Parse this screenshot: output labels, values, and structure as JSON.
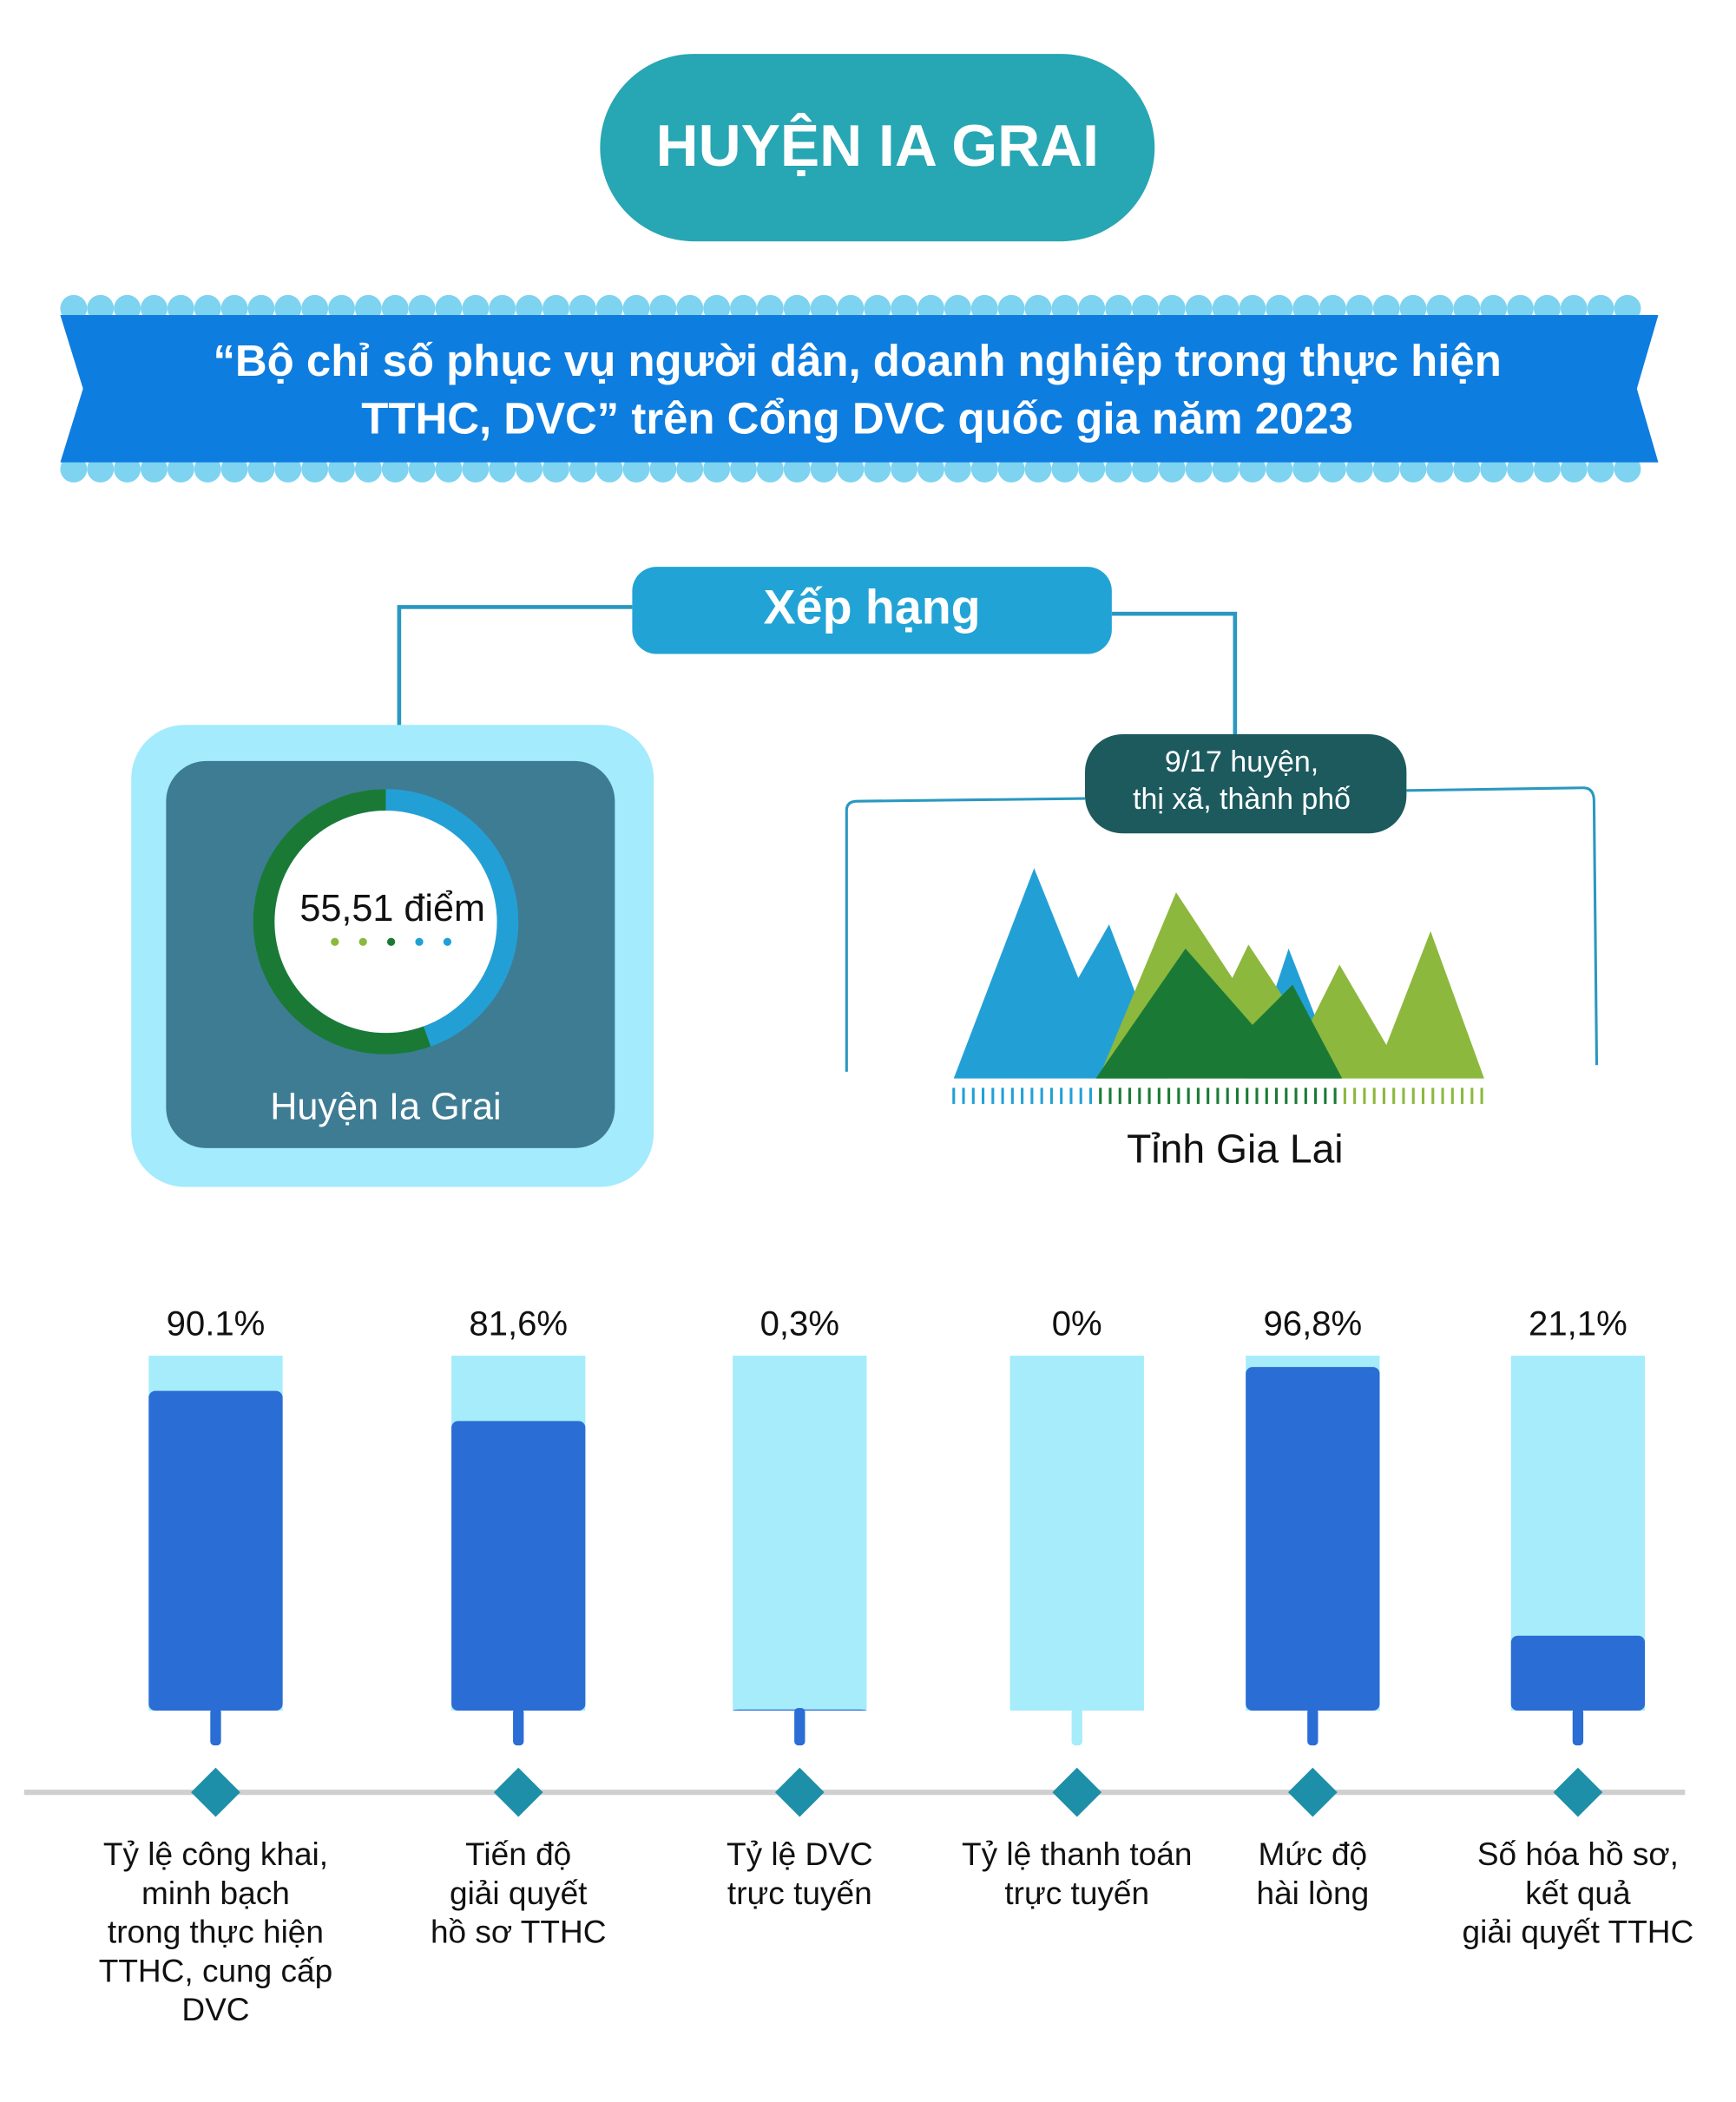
{
  "header": {
    "title": "HUYỆN IA GRAI",
    "banner": "“Bộ chỉ số phục vụ người dân, doanh nghiệp trong thực hiện\nTTHC, DVC” trên Cổng DVC quốc gia năm 2023"
  },
  "ranking": {
    "title": "Xếp hạng",
    "score": 55.51,
    "score_label": "55,51 điểm",
    "score_lim": [
      0,
      100
    ],
    "unit_name": "Huyện Ia Grai",
    "rank": "9/17 huyện,\nthị xã, thành phố",
    "province": "Tỉnh Gia Lai"
  },
  "chart_data": {
    "type": "bar",
    "categories": [
      "Tỷ lệ công khai,\nminh bạch\ntrong thực hiện\nTTHC, cung cấp\nDVC",
      "Tiến độ\ngiải quyết\nhồ sơ TTHC",
      "Tỷ lệ DVC\ntrực tuyến",
      "Tỷ lệ thanh toán\ntrực tuyến",
      "Mức độ\nhài lòng",
      "Số hóa hồ sơ,\nkết quả\ngiải quyết TTHC"
    ],
    "values": [
      90.1,
      81.6,
      0.3,
      0,
      96.8,
      21.1
    ],
    "value_labels": [
      "90.1%",
      "81,6%",
      "0,3%",
      "0%",
      "96,8%",
      "21,1%"
    ],
    "ylim": [
      0,
      100
    ],
    "color": "#2a6dd4",
    "track_color": "#a6ecfb"
  }
}
